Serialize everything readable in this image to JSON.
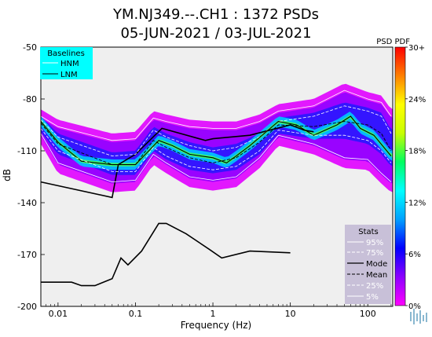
{
  "chart_data": {
    "type": "heatmap",
    "title_line1": "YM.NJ349.--.CH1 : 1372 PSDs",
    "title_line2": "05-JUN-2021 / 03-JUL-2021",
    "xlabel": "Frequency (Hz)",
    "ylabel": "dB",
    "xscale": "log",
    "xlim": [
      0.006,
      210
    ],
    "ylim": [
      -200,
      -50
    ],
    "x_ticks": [
      {
        "value": 0.01,
        "label": "0.01"
      },
      {
        "value": 0.1,
        "label": "0.1"
      },
      {
        "value": 1,
        "label": "1"
      },
      {
        "value": 10,
        "label": "10"
      },
      {
        "value": 100,
        "label": "100"
      }
    ],
    "y_ticks": [
      {
        "value": -50,
        "label": "-50"
      },
      {
        "value": -80,
        "label": "-80"
      },
      {
        "value": -110,
        "label": "-110"
      },
      {
        "value": -140,
        "label": "-140"
      },
      {
        "value": -170,
        "label": "-170"
      },
      {
        "value": -200,
        "label": "-200"
      }
    ],
    "background": "#efefef",
    "baselines_legend": {
      "title": "Baselines",
      "items": [
        "HNM",
        "LNM"
      ],
      "color": "#00ffff"
    },
    "stats_legend": {
      "title": "Stats",
      "items": [
        "95%",
        "75%",
        "Mode",
        "Mean",
        "25%",
        "5%"
      ],
      "color": "#c8c0d8"
    },
    "colorbar": {
      "title": "PSD PDF",
      "labels": [
        "30+",
        "24%",
        "18%",
        "12%",
        "6%",
        "0%"
      ],
      "stops": [
        "#ff00ff",
        "#8c00ff",
        "#0000ff",
        "#00a0ff",
        "#00ffff",
        "#00ff60",
        "#c8ff00",
        "#ffff00",
        "#ff8000",
        "#ff0000"
      ]
    },
    "series": [
      {
        "name": "HNM",
        "x": [
          0.006,
          0.05,
          0.06,
          0.1,
          0.22,
          0.8,
          1,
          3,
          10,
          15,
          20
        ],
        "y": [
          -128,
          -137,
          -118,
          -112,
          -97,
          -104,
          -103,
          -101,
          -95,
          -98,
          -99
        ]
      },
      {
        "name": "LNM",
        "x": [
          0.006,
          0.015,
          0.02,
          0.03,
          0.05,
          0.065,
          0.08,
          0.12,
          0.2,
          0.25,
          0.45,
          0.9,
          1.3,
          3,
          10
        ],
        "y": [
          -186,
          -186,
          -188,
          -188,
          -184,
          -172,
          -176,
          -168,
          -152,
          -152,
          -158,
          -167,
          -172,
          -168,
          -169
        ]
      },
      {
        "name": "95%",
        "x": [
          0.006,
          0.01,
          0.05,
          0.1,
          0.17,
          0.25,
          0.5,
          1,
          2,
          4,
          7,
          20,
          50,
          100,
          150,
          200
        ],
        "y": [
          -90,
          -96,
          -104,
          -103,
          -91,
          -93,
          -96,
          -97,
          -97,
          -93,
          -87,
          -84,
          -75,
          -80,
          -82,
          -90
        ]
      },
      {
        "name": "75%",
        "x": [
          0.006,
          0.01,
          0.05,
          0.1,
          0.17,
          0.25,
          0.5,
          1,
          2,
          4,
          7,
          20,
          50,
          100,
          150,
          200
        ],
        "y": [
          -92,
          -102,
          -113,
          -112,
          -98,
          -102,
          -107,
          -110,
          -108,
          -102,
          -93,
          -90,
          -84,
          -87,
          -90,
          -100
        ]
      },
      {
        "name": "Mode",
        "x": [
          0.006,
          0.01,
          0.02,
          0.05,
          0.1,
          0.2,
          0.3,
          0.5,
          1,
          1.5,
          2,
          3,
          7,
          12,
          20,
          40,
          60,
          80,
          120,
          200
        ],
        "y": [
          -93,
          -105,
          -116,
          -118,
          -118,
          -104,
          -107,
          -112,
          -114,
          -117,
          -113,
          -107,
          -93,
          -95,
          -101,
          -95,
          -90,
          -97,
          -101,
          -113
        ]
      },
      {
        "name": "Mean",
        "x": [
          0.006,
          0.01,
          0.05,
          0.1,
          0.17,
          0.25,
          0.5,
          1,
          2,
          4,
          7,
          20,
          50,
          100,
          150,
          200
        ],
        "y": [
          -94,
          -106,
          -118,
          -118,
          -104,
          -108,
          -114,
          -117,
          -114,
          -105,
          -95,
          -96,
          -93,
          -95,
          -100,
          -110
        ]
      },
      {
        "name": "25%",
        "x": [
          0.006,
          0.01,
          0.05,
          0.1,
          0.17,
          0.25,
          0.5,
          1,
          2,
          4,
          7,
          20,
          50,
          100,
          150,
          200
        ],
        "y": [
          -97,
          -110,
          -122,
          -122,
          -108,
          -113,
          -119,
          -121,
          -119,
          -110,
          -98,
          -101,
          -101,
          -104,
          -110,
          -117
        ]
      },
      {
        "name": "5%",
        "x": [
          0.006,
          0.01,
          0.05,
          0.1,
          0.17,
          0.25,
          0.5,
          1,
          2,
          4,
          7,
          20,
          50,
          100,
          150,
          200
        ],
        "y": [
          -100,
          -117,
          -128,
          -127,
          -112,
          -117,
          -125,
          -127,
          -125,
          -114,
          -101,
          -106,
          -114,
          -115,
          -123,
          -128
        ]
      }
    ]
  }
}
